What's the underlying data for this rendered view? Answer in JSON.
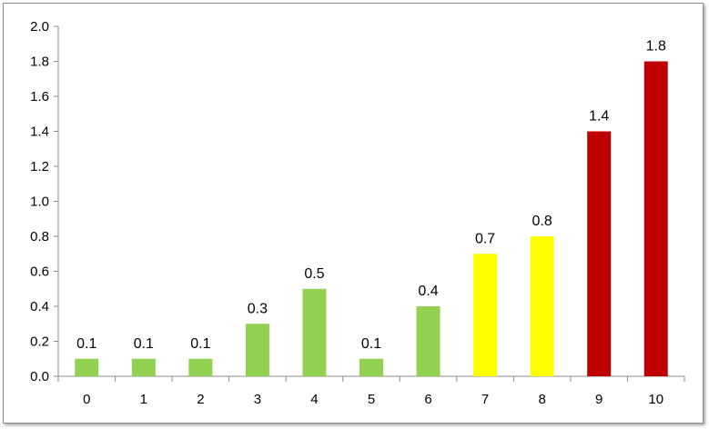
{
  "chart_data": {
    "type": "bar",
    "categories": [
      "0",
      "1",
      "2",
      "3",
      "4",
      "5",
      "6",
      "7",
      "8",
      "9",
      "10"
    ],
    "values": [
      0.1,
      0.1,
      0.1,
      0.3,
      0.5,
      0.1,
      0.4,
      0.7,
      0.8,
      1.4,
      1.8
    ],
    "data_labels": [
      "0.1",
      "0.1",
      "0.1",
      "0.3",
      "0.5",
      "0.1",
      "0.4",
      "0.7",
      "0.8",
      "1.4",
      "1.8"
    ],
    "bar_colors": [
      "#92d050",
      "#92d050",
      "#92d050",
      "#92d050",
      "#92d050",
      "#92d050",
      "#92d050",
      "#ffff00",
      "#ffff00",
      "#c00000",
      "#c00000"
    ],
    "y_ticks": [
      "0.0",
      "0.2",
      "0.4",
      "0.6",
      "0.8",
      "1.0",
      "1.2",
      "1.4",
      "1.6",
      "1.8",
      "2.0"
    ],
    "ylim": [
      0,
      2.0
    ],
    "title": "",
    "xlabel": "",
    "ylabel": "",
    "grid": false,
    "legend": "none"
  }
}
